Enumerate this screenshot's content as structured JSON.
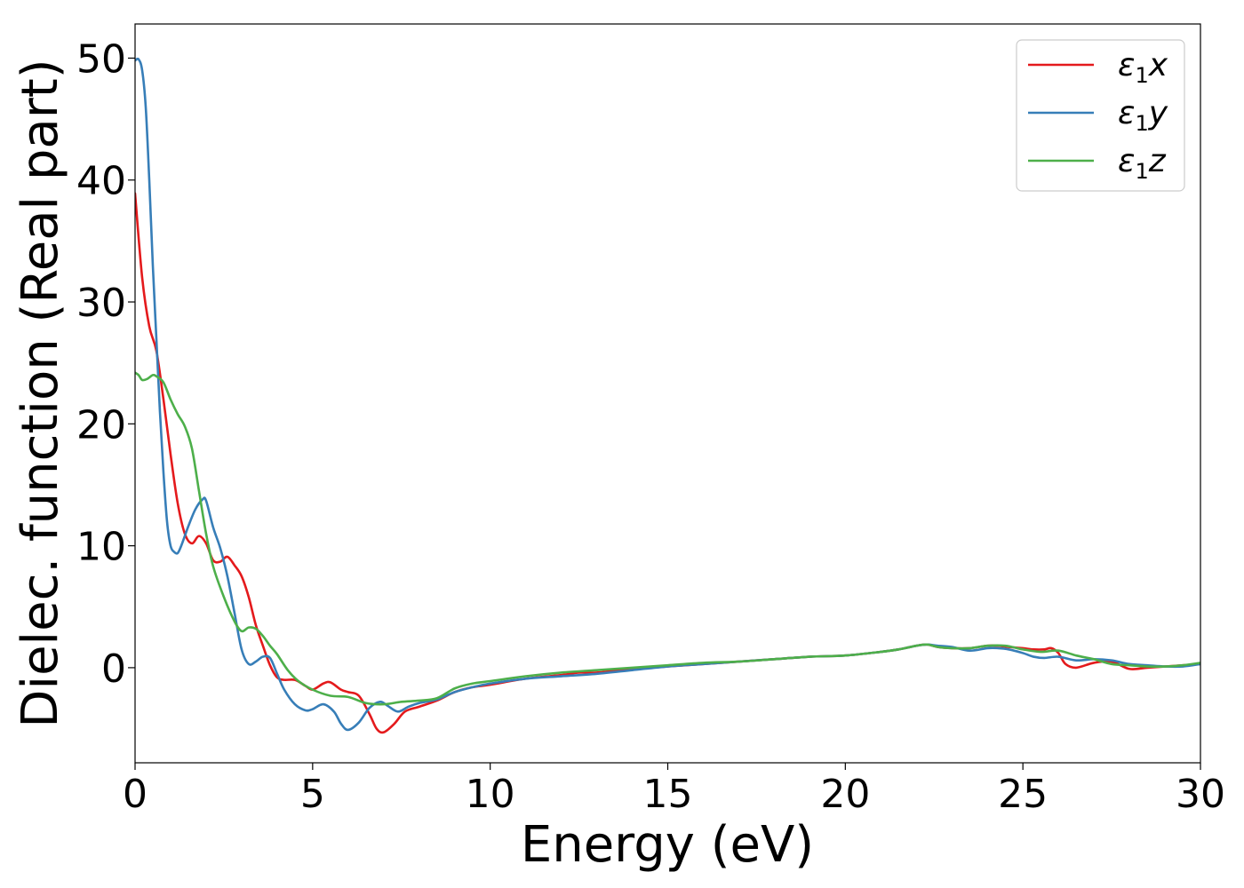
{
  "chart_data": {
    "type": "line",
    "xlabel": "Energy (eV)",
    "ylabel": "Dielec. function (Real part)",
    "xlim": [
      0,
      30
    ],
    "ylim": [
      -7.8,
      52.8
    ],
    "xticks": [
      0,
      5,
      10,
      15,
      20,
      25,
      30
    ],
    "yticks": [
      0,
      10,
      20,
      30,
      40,
      50
    ],
    "grid": false,
    "legend_position": "top-right",
    "series": [
      {
        "name": "ε1x",
        "legend_base": "ε",
        "legend_sub": "1",
        "legend_var": "x",
        "color": "#e41a1c",
        "x": [
          0,
          0.2,
          0.4,
          0.6,
          0.8,
          1.0,
          1.2,
          1.4,
          1.6,
          1.8,
          2.0,
          2.2,
          2.4,
          2.6,
          2.8,
          3.0,
          3.2,
          3.4,
          3.6,
          3.8,
          4.0,
          4.2,
          4.5,
          4.8,
          5.0,
          5.3,
          5.5,
          5.8,
          6.0,
          6.3,
          6.6,
          6.8,
          7.0,
          7.3,
          7.6,
          8.0,
          8.5,
          9.0,
          9.5,
          10,
          11,
          12,
          12.5,
          13,
          14,
          15,
          16,
          17,
          18,
          19,
          20,
          21,
          21.5,
          22,
          22.3,
          22.6,
          23,
          23.5,
          24,
          24.3,
          24.6,
          25,
          25.3,
          25.6,
          25.8,
          26,
          26.2,
          26.5,
          27,
          27.5,
          28,
          28.5,
          29,
          29.5,
          30
        ],
        "y": [
          38.9,
          32,
          28,
          26,
          22,
          17.5,
          13.5,
          11,
          10.2,
          10.8,
          10.2,
          8.8,
          8.7,
          9.1,
          8.4,
          7.5,
          5.8,
          3.5,
          1.8,
          0.2,
          -0.8,
          -1,
          -1,
          -1.5,
          -1.8,
          -1.3,
          -1.2,
          -1.8,
          -2.0,
          -2.3,
          -3.8,
          -5.0,
          -5.3,
          -4.6,
          -3.6,
          -3.2,
          -2.7,
          -2.0,
          -1.6,
          -1.4,
          -0.9,
          -0.6,
          -0.4,
          -0.4,
          -0.1,
          0.1,
          0.3,
          0.5,
          0.7,
          0.9,
          1.0,
          1.3,
          1.5,
          1.8,
          1.9,
          1.7,
          1.6,
          1.6,
          1.8,
          1.8,
          1.7,
          1.6,
          1.5,
          1.5,
          1.6,
          1.2,
          0.3,
          0.0,
          0.4,
          0.5,
          -0.1,
          0.0,
          0.1,
          0.2,
          0.3
        ]
      },
      {
        "name": "ε1y",
        "legend_base": "ε",
        "legend_sub": "1",
        "legend_var": "y",
        "color": "#377eb8",
        "x": [
          0,
          0.1,
          0.2,
          0.3,
          0.4,
          0.5,
          0.6,
          0.7,
          0.8,
          0.9,
          1.0,
          1.1,
          1.2,
          1.3,
          1.5,
          1.7,
          1.9,
          2.0,
          2.2,
          2.4,
          2.6,
          2.8,
          3.0,
          3.2,
          3.4,
          3.6,
          3.8,
          4.0,
          4.2,
          4.5,
          4.8,
          5.0,
          5.3,
          5.6,
          5.8,
          6.0,
          6.3,
          6.6,
          6.9,
          7.1,
          7.4,
          7.7,
          8.0,
          8.5,
          9.0,
          9.5,
          10,
          11,
          12,
          13,
          14,
          15,
          16,
          17,
          18,
          19,
          20,
          21,
          21.5,
          22,
          22.3,
          22.6,
          23,
          23.5,
          24,
          24.3,
          24.6,
          25,
          25.3,
          25.6,
          26,
          26.5,
          27,
          27.5,
          28,
          28.5,
          29,
          29.5,
          30
        ],
        "y": [
          49.8,
          49.9,
          49,
          46,
          40,
          33,
          27,
          21,
          16,
          12,
          10,
          9.5,
          9.4,
          10,
          11.6,
          13.0,
          13.8,
          13.7,
          11.5,
          9.8,
          7.5,
          4.5,
          1.5,
          0.3,
          0.5,
          0.9,
          0.8,
          -0.5,
          -1.8,
          -3,
          -3.5,
          -3.4,
          -3.0,
          -3.6,
          -4.6,
          -5.1,
          -4.5,
          -3.3,
          -2.8,
          -3.1,
          -3.6,
          -3.2,
          -2.9,
          -2.6,
          -2.0,
          -1.6,
          -1.3,
          -0.9,
          -0.7,
          -0.5,
          -0.2,
          0.1,
          0.3,
          0.5,
          0.7,
          0.9,
          1.0,
          1.3,
          1.5,
          1.8,
          1.9,
          1.8,
          1.7,
          1.4,
          1.6,
          1.6,
          1.5,
          1.2,
          0.9,
          0.8,
          0.9,
          0.6,
          0.7,
          0.6,
          0.3,
          0.2,
          0.1,
          0.1,
          0.3
        ]
      },
      {
        "name": "ε1z",
        "legend_base": "ε",
        "legend_sub": "1",
        "legend_var": "z",
        "color": "#4daf4a",
        "x": [
          0,
          0.1,
          0.2,
          0.35,
          0.5,
          0.6,
          0.8,
          1.0,
          1.2,
          1.4,
          1.6,
          1.8,
          2.0,
          2.2,
          2.5,
          2.8,
          3.0,
          3.2,
          3.4,
          3.6,
          3.8,
          4.0,
          4.3,
          4.6,
          5.0,
          5.5,
          6.0,
          6.5,
          7.0,
          7.5,
          8.0,
          8.5,
          9.0,
          9.5,
          10,
          11,
          12,
          13,
          14,
          15,
          16,
          17,
          18,
          19,
          20,
          21,
          21.5,
          22,
          22.3,
          22.6,
          23,
          23.5,
          24,
          24.5,
          25,
          25.5,
          26,
          26.5,
          27,
          27.5,
          28,
          28.5,
          29,
          29.5,
          30
        ],
        "y": [
          24.2,
          24.0,
          23.6,
          23.7,
          24.0,
          23.9,
          23.4,
          22,
          20.8,
          19.8,
          18.0,
          14.5,
          11.0,
          8.3,
          5.8,
          3.8,
          3.0,
          3.3,
          3.2,
          2.6,
          1.8,
          1.1,
          -0.2,
          -1.1,
          -1.8,
          -2.3,
          -2.4,
          -2.9,
          -3.0,
          -2.8,
          -2.7,
          -2.5,
          -1.7,
          -1.3,
          -1.1,
          -0.7,
          -0.4,
          -0.2,
          0.0,
          0.2,
          0.4,
          0.5,
          0.7,
          0.9,
          1.0,
          1.3,
          1.5,
          1.8,
          1.9,
          1.7,
          1.6,
          1.6,
          1.8,
          1.8,
          1.5,
          1.3,
          1.4,
          1.0,
          0.7,
          0.3,
          0.2,
          0.1,
          0.1,
          0.2,
          0.4
        ]
      }
    ]
  }
}
